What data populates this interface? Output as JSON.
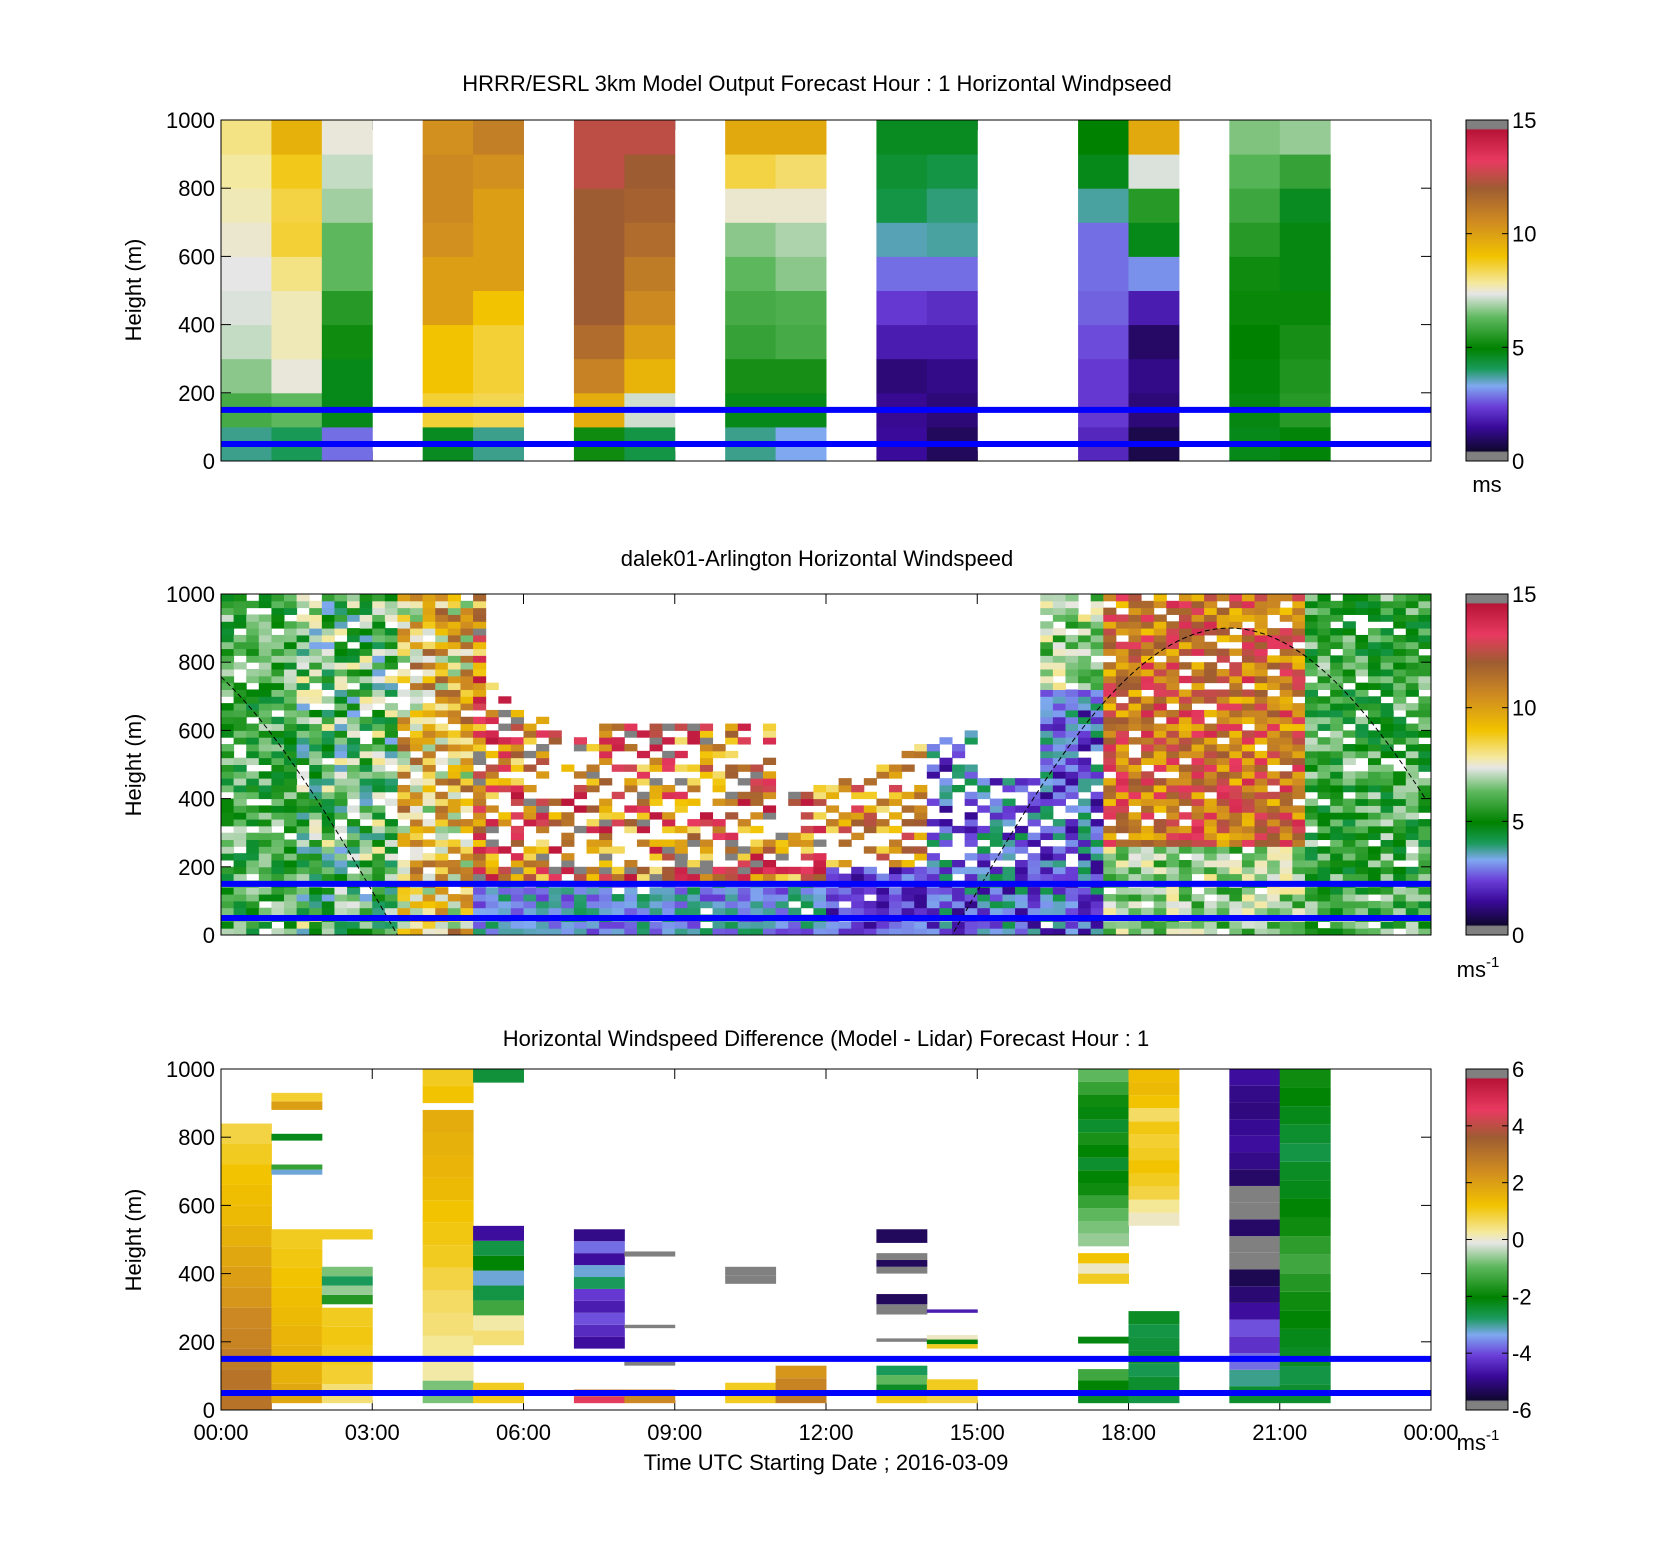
{
  "chart_data": [
    {
      "type": "heatmap",
      "title": "HRRR/ESRL 3km Model Output   Forecast Hour : 1 Horizontal Windpseed",
      "ylabel": "Height (m)",
      "ylim": [
        0,
        1000
      ],
      "yticks": [
        "0",
        "200",
        "400",
        "600",
        "800",
        "1000"
      ],
      "xlim_hours": [
        0,
        24
      ],
      "reference_lines_m": [
        50,
        150
      ],
      "colorbar": {
        "ticks": [
          "0",
          "5",
          "10",
          "15"
        ],
        "range": [
          0,
          15
        ],
        "unit": "ms",
        "unit_sup": ""
      },
      "hourly_profiles": [
        {
          "hour": 0,
          "values": [
            3.5,
            5.7,
            6.4,
            6.9,
            7.1,
            7.2,
            7.4,
            7.6,
            7.8,
            8
          ]
        },
        {
          "hour": 1,
          "values": [
            3.8,
            6,
            7.3,
            7.6,
            7.6,
            8,
            8.6,
            8.5,
            8.8,
            9.5
          ]
        },
        {
          "hour": 2,
          "values": [
            2.5,
            4.5,
            4.5,
            5,
            5.3,
            6,
            6,
            6.6,
            6.9,
            7.3
          ]
        },
        {
          "hour": 4,
          "values": [
            4.4,
            8.6,
            9,
            9,
            10,
            10,
            10.4,
            10.6,
            10.6,
            10.4
          ]
        },
        {
          "hour": 5,
          "values": [
            3.5,
            8.4,
            8.6,
            8.6,
            9,
            10,
            10,
            10,
            10.4,
            10.9
          ]
        },
        {
          "hour": 7,
          "values": [
            5,
            9.6,
            10.8,
            11.5,
            12,
            12,
            12,
            12,
            12.5,
            12.5
          ]
        },
        {
          "hour": 8,
          "values": [
            4,
            7,
            9.4,
            10,
            10.6,
            11,
            11.5,
            11.8,
            12,
            12.5
          ]
        },
        {
          "hour": 10,
          "values": [
            3.5,
            4.5,
            5.1,
            5.5,
            5.7,
            6,
            6.4,
            7.4,
            8.5,
            9.7
          ]
        },
        {
          "hour": 11,
          "values": [
            3,
            4.5,
            5.1,
            5.7,
            5.8,
            6.4,
            6.7,
            7.4,
            8.2,
            9.7
          ]
        },
        {
          "hour": 13,
          "values": [
            1.2,
            1.1,
            0.8,
            1.5,
            2,
            2.5,
            3.3,
            4,
            4.2,
            4.4
          ]
        },
        {
          "hour": 14,
          "values": [
            0.5,
            0.8,
            1,
            1.5,
            1.8,
            2.5,
            3.4,
            3.6,
            4,
            4.4
          ]
        },
        {
          "hour": 17,
          "values": [
            1.7,
            2,
            2,
            2.2,
            2.4,
            2.5,
            2.5,
            3.4,
            4.5,
            4.8
          ]
        },
        {
          "hour": 18,
          "values": [
            0.3,
            0.8,
            1,
            0.6,
            1.5,
            2.8,
            4.5,
            5.3,
            7.1,
            9.7
          ]
        },
        {
          "hour": 20,
          "values": [
            4.5,
            4.6,
            4.7,
            4.8,
            4.9,
            5,
            5.3,
            5.6,
            5.9,
            6.3
          ]
        },
        {
          "hour": 21,
          "values": [
            4.7,
            5.3,
            5.2,
            5.1,
            4.9,
            4.6,
            4.6,
            4.4,
            5.5,
            6.5
          ]
        }
      ]
    },
    {
      "type": "heatmap",
      "title": "dalek01-Arlington  Horizontal Windspeed",
      "ylabel": "Height (m)",
      "ylim": [
        0,
        1000
      ],
      "yticks": [
        "0",
        "200",
        "400",
        "600",
        "800",
        "1000"
      ],
      "xlim_hours": [
        0,
        24
      ],
      "reference_lines_m": [
        50,
        150
      ],
      "colorbar": {
        "ticks": [
          "0",
          "5",
          "10",
          "15"
        ],
        "range": [
          0,
          15
        ],
        "unit": "ms",
        "unit_sup": "-1"
      }
    },
    {
      "type": "heatmap",
      "title": "Horizontal Windspeed Difference (Model - Lidar) Forecast Hour : 1",
      "xlabel": "Time UTC  Starting Date ; 2016-03-09",
      "ylabel": "Height (m)",
      "ylim": [
        0,
        1000
      ],
      "yticks": [
        "0",
        "200",
        "400",
        "600",
        "800",
        "1000"
      ],
      "xlim_hours": [
        0,
        24
      ],
      "xticks": [
        "00:00",
        "03:00",
        "06:00",
        "09:00",
        "12:00",
        "15:00",
        "18:00",
        "21:00",
        "00:00"
      ],
      "reference_lines_m": [
        50,
        150
      ],
      "colorbar": {
        "ticks": [
          "-6",
          "-4",
          "-2",
          "0",
          "2",
          "4",
          "6"
        ],
        "range": [
          -6,
          6
        ],
        "unit": "ms",
        "unit_sup": "-1"
      },
      "difference_segments": [
        {
          "hour": 0,
          "bottom_m": 0,
          "top_m": 840,
          "values": [
            3,
            3,
            2.8,
            2.6,
            2.5,
            2.2,
            2,
            1.8,
            1.6,
            1.4,
            1.3,
            1.2,
            1,
            0.8
          ]
        },
        {
          "hour": 1,
          "bottom_m": 20,
          "top_m": 530,
          "values": [
            1.8,
            1.6,
            1.6,
            1.5,
            1.4,
            1.3,
            1.2,
            1.1,
            1
          ]
        },
        {
          "hour": 1,
          "bottom_m": 880,
          "top_m": 930,
          "values": [
            2,
            0.9
          ]
        },
        {
          "hour": 1,
          "bottom_m": 790,
          "top_m": 810,
          "values": [
            -2.4
          ]
        },
        {
          "hour": 1,
          "bottom_m": 690,
          "top_m": 720,
          "values": [
            -3.5,
            -1.6
          ]
        },
        {
          "hour": 2,
          "bottom_m": 20,
          "top_m": 300,
          "values": [
            0.5,
            0.9,
            1,
            1.1,
            1
          ]
        },
        {
          "hour": 2,
          "bottom_m": 310,
          "top_m": 420,
          "values": [
            -1.8,
            -0.8,
            -3,
            -1
          ]
        },
        {
          "hour": 2,
          "bottom_m": 500,
          "top_m": 530,
          "values": [
            1
          ]
        },
        {
          "hour": 4,
          "bottom_m": 20,
          "top_m": 880,
          "values": [
            -1,
            0.2,
            0.3,
            0.5,
            0.6,
            0.8,
            1,
            1.1,
            1.2,
            1.4,
            1.5,
            1.6,
            1.7
          ]
        },
        {
          "hour": 4,
          "bottom_m": 900,
          "top_m": 1000,
          "values": [
            1.2,
            1
          ]
        },
        {
          "hour": 5,
          "bottom_m": 960,
          "top_m": 1000,
          "values": [
            -2.7
          ]
        },
        {
          "hour": 5,
          "bottom_m": 20,
          "top_m": 80,
          "values": [
            1
          ]
        },
        {
          "hour": 5,
          "bottom_m": 190,
          "top_m": 540,
          "values": [
            0.5,
            0.2,
            -1.5,
            -2.8,
            -3.5,
            -2.2,
            -2.8,
            -5
          ]
        },
        {
          "hour": 7,
          "bottom_m": 180,
          "top_m": 530,
          "values": [
            -5,
            -4.6,
            -4.2,
            -4.8,
            -4.4,
            -3,
            -3.5,
            -5,
            -4,
            -5.2
          ]
        },
        {
          "hour": 7,
          "bottom_m": 20,
          "top_m": 60,
          "values": [
            4.5,
            3
          ]
        },
        {
          "hour": 8,
          "bottom_m": 130,
          "top_m": 150,
          "values": [
            -6
          ]
        },
        {
          "hour": 8,
          "bottom_m": 20,
          "top_m": 60,
          "values": [
            2.5
          ]
        },
        {
          "hour": 8,
          "bottom_m": 240,
          "top_m": 250,
          "values": [
            -6
          ]
        },
        {
          "hour": 8,
          "bottom_m": 450,
          "top_m": 465,
          "values": [
            -6
          ]
        },
        {
          "hour": 10,
          "bottom_m": 370,
          "top_m": 420,
          "values": [
            -6,
            -6
          ]
        },
        {
          "hour": 10,
          "bottom_m": 20,
          "top_m": 80,
          "values": [
            1
          ]
        },
        {
          "hour": 11,
          "bottom_m": 20,
          "top_m": 130,
          "values": [
            2.8,
            2.6,
            2.2
          ]
        },
        {
          "hour": 13,
          "bottom_m": 20,
          "top_m": 130,
          "values": [
            1,
            -2.5,
            -1.2,
            -3
          ]
        },
        {
          "hour": 13,
          "bottom_m": 200,
          "top_m": 210,
          "values": [
            -6
          ]
        },
        {
          "hour": 13,
          "bottom_m": 280,
          "top_m": 340,
          "values": [
            -6,
            -5.6
          ]
        },
        {
          "hour": 13,
          "bottom_m": 400,
          "top_m": 460,
          "values": [
            -6,
            -5.6,
            -6
          ]
        },
        {
          "hour": 13,
          "bottom_m": 490,
          "top_m": 530,
          "values": [
            -5.6
          ]
        },
        {
          "hour": 14,
          "bottom_m": 20,
          "top_m": 90,
          "values": [
            0.8,
            1
          ]
        },
        {
          "hour": 14,
          "bottom_m": 180,
          "top_m": 220,
          "values": [
            1,
            -2.2,
            0
          ]
        },
        {
          "hour": 14,
          "bottom_m": 285,
          "top_m": 295,
          "values": [
            -4.8
          ]
        },
        {
          "hour": 17,
          "bottom_m": 20,
          "top_m": 120,
          "values": [
            -2.5,
            -2.2,
            -1.5
          ]
        },
        {
          "hour": 17,
          "bottom_m": 195,
          "top_m": 215,
          "values": [
            -2.3
          ]
        },
        {
          "hour": 17,
          "bottom_m": 370,
          "top_m": 460,
          "values": [
            1,
            0,
            1.2
          ]
        },
        {
          "hour": 17,
          "bottom_m": 480,
          "top_m": 1000,
          "values": [
            -0.8,
            -1,
            -1.2,
            -1.6,
            -2,
            -2.2,
            -2.6,
            -2.2,
            -1.9,
            -2.6,
            -2.3,
            -2,
            -1.6,
            -1.2
          ]
        },
        {
          "hour": 18,
          "bottom_m": 20,
          "top_m": 290,
          "values": [
            -2.8,
            -2.6,
            -2.9,
            -2.6,
            -2.7,
            -2.8,
            -2.5
          ]
        },
        {
          "hour": 18,
          "bottom_m": 540,
          "top_m": 1000,
          "values": [
            0,
            0.3,
            0.8,
            1,
            1.2,
            1,
            0.9,
            1.1,
            0.6,
            1.2,
            1.4,
            1.3
          ]
        },
        {
          "hour": 20,
          "bottom_m": 20,
          "top_m": 1000,
          "values": [
            -2.6,
            -3.2,
            -4,
            -4.5,
            -4.2,
            -5,
            -5.4,
            -5.7,
            -6,
            -6,
            -5.5,
            -6,
            -6,
            -5.5,
            -5.2,
            -5,
            -5.1,
            -5.3,
            -5.2,
            -5
          ]
        },
        {
          "hour": 21,
          "bottom_m": 20,
          "top_m": 1000,
          "values": [
            -2.6,
            -2.8,
            -2.5,
            -2.4,
            -2.2,
            -2,
            -1.8,
            -1.5,
            -1.7,
            -2,
            -2.2,
            -2.4,
            -2.5,
            -2.8,
            -2.6,
            -2.4,
            -2.2,
            -2
          ]
        }
      ]
    }
  ]
}
